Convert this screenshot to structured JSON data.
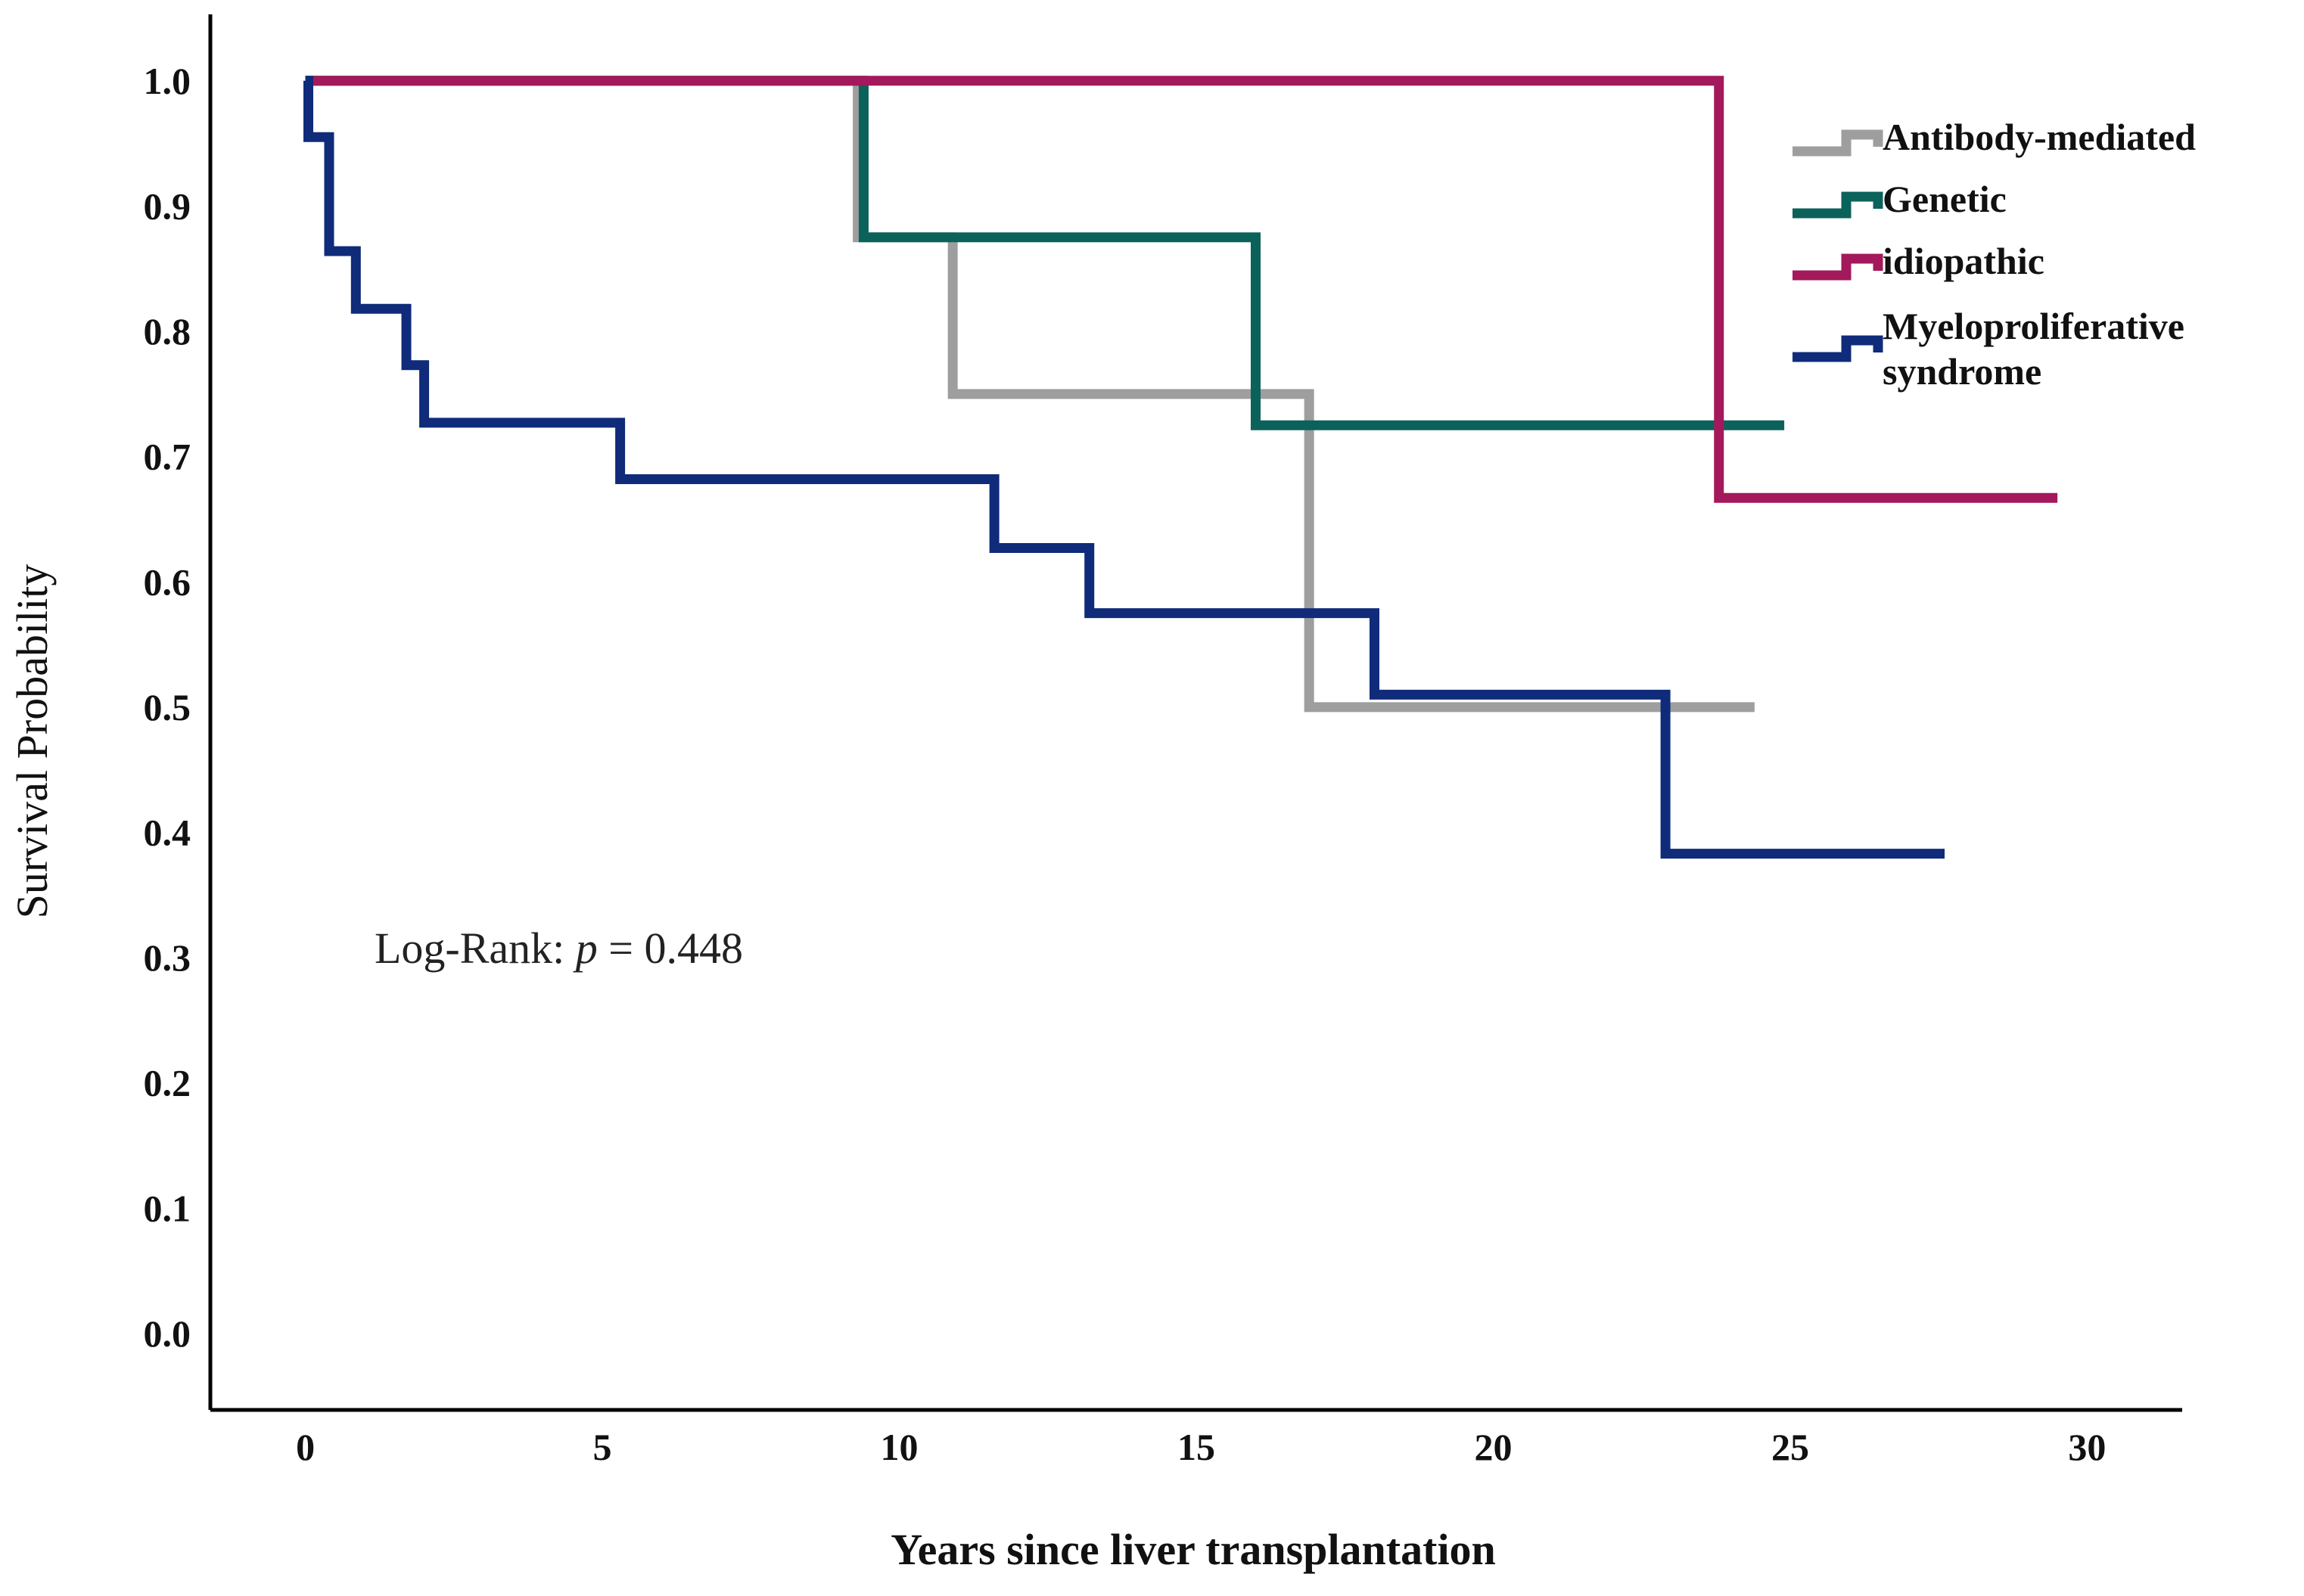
{
  "chart_data": {
    "type": "step",
    "x_label": "Years since liver transplantation",
    "y_label": "Survival Probability",
    "annotation": {
      "label": "Log-Rank:",
      "symbol": "p",
      "text": "= 0.448"
    },
    "xlim": [
      -1.6,
      31.6
    ],
    "ylim": [
      -0.061,
      1.053
    ],
    "xticks": [
      0,
      5,
      10,
      15,
      20,
      25,
      30
    ],
    "yticks": [
      {
        "value": 0,
        "label": "0.0"
      },
      0.1,
      0.2,
      0.3,
      0.4,
      0.5,
      0.6,
      0.7,
      0.8,
      0.9,
      {
        "value": 1,
        "label": "1.0"
      }
    ],
    "grid": false,
    "legend": "upper right",
    "series": [
      {
        "name": "Antibody-mediated",
        "color": "#9e9e9e",
        "x": [
          0,
          9.3,
          10.9,
          16.9,
          24.4
        ],
        "values": [
          1,
          0.875,
          0.75,
          0.5,
          0.5
        ]
      },
      {
        "name": "Genetic",
        "color": "#0b625b",
        "x": [
          0,
          9.4,
          16.0,
          24.9
        ],
        "values": [
          1,
          0.875,
          0.725,
          0.725
        ]
      },
      {
        "name": "idiopathic",
        "color": "#a3195b",
        "x": [
          0,
          23.8,
          29.5
        ],
        "values": [
          1,
          0.667,
          0.667
        ]
      },
      {
        "name": "Myeloproliferative syndrome",
        "color": "#0f2b7a",
        "x": [
          0,
          0.05,
          0.4,
          0.85,
          1.7,
          2.0,
          5.3,
          11.6,
          13.2,
          18.0,
          22.9,
          27.6
        ],
        "values": [
          1,
          0.955,
          0.864,
          0.818,
          0.773,
          0.727,
          0.682,
          0.627,
          0.575,
          0.51,
          0.383,
          0.383
        ]
      }
    ]
  }
}
